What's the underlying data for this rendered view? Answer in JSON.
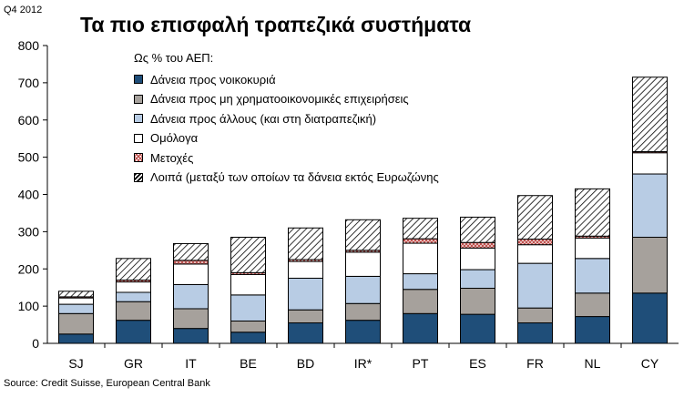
{
  "header": {
    "period": "Q4 2012",
    "title": "Τα πιο επισφαλή τραπεζικά συστήματα"
  },
  "footer": {
    "source": "Source: Credit Suisse, European Central Bank"
  },
  "legend": {
    "title": "Ως % του ΑΕΠ:",
    "placement": "top-left"
  },
  "colors": {
    "households": "#1f4e79",
    "non_financial": "#a6a19c",
    "other_loans": "#b8cce4",
    "bonds": "#ffffff",
    "equity": "#c0504d",
    "other": "#000000"
  },
  "chart_data": {
    "type": "bar",
    "stacked": true,
    "categories": [
      "SJ",
      "GR",
      "IT",
      "BE",
      "BD",
      "IR*",
      "PT",
      "ES",
      "FR",
      "NL",
      "CY"
    ],
    "ylim": [
      0,
      800
    ],
    "yticks": [
      0,
      100,
      200,
      300,
      400,
      500,
      600,
      700,
      800
    ],
    "grid": false,
    "series": [
      {
        "name": "Δάνεια προς νοικοκυριά",
        "fill": "households",
        "pattern": "solid",
        "values": [
          25,
          62,
          40,
          30,
          55,
          62,
          80,
          78,
          55,
          72,
          135
        ]
      },
      {
        "name": "Δάνεια προς μη χρηματοοικονομικές επιχειρήσεις",
        "fill": "non_financial",
        "pattern": "solid",
        "values": [
          55,
          50,
          53,
          30,
          35,
          45,
          65,
          70,
          40,
          63,
          150
        ]
      },
      {
        "name": "Δάνεια προς άλλους (και στη διατραπεζική)",
        "fill": "other_loans",
        "pattern": "solid",
        "values": [
          25,
          25,
          65,
          70,
          85,
          73,
          42,
          50,
          120,
          93,
          170
        ]
      },
      {
        "name": "Ομόλογα",
        "fill": "bonds",
        "pattern": "solid",
        "values": [
          17,
          28,
          55,
          55,
          45,
          65,
          82,
          58,
          50,
          55,
          57
        ]
      },
      {
        "name": "Μετοχές",
        "fill": "equity",
        "pattern": "crosshatch",
        "values": [
          3,
          5,
          10,
          5,
          5,
          5,
          12,
          15,
          15,
          5,
          3
        ]
      },
      {
        "name": "Λοιπά (μεταξύ των οποίων τα δάνεια εκτός Ευρωζώνης",
        "fill": "other",
        "pattern": "diagonal",
        "values": [
          15,
          58,
          45,
          95,
          85,
          82,
          55,
          68,
          117,
          127,
          200
        ]
      }
    ]
  }
}
